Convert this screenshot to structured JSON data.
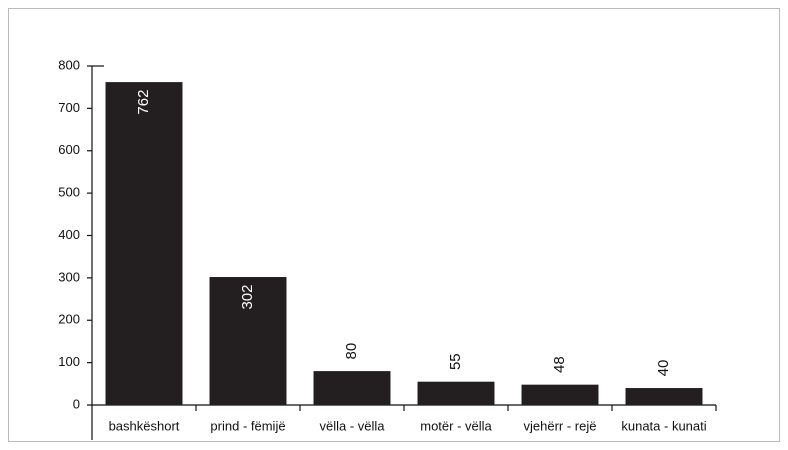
{
  "chart_data": {
    "type": "bar",
    "categories": [
      "bashkëshort",
      "prind - fëmijë",
      "vëlla - vëlla",
      "motër - vëlla",
      "vjehërr - rejë",
      "kunata - kunati"
    ],
    "values": [
      762,
      302,
      80,
      55,
      48,
      40
    ],
    "color": "#231f20",
    "ylim": [
      0,
      800
    ],
    "yticks": [
      0,
      100,
      200,
      300,
      400,
      500,
      600,
      700,
      800
    ]
  }
}
